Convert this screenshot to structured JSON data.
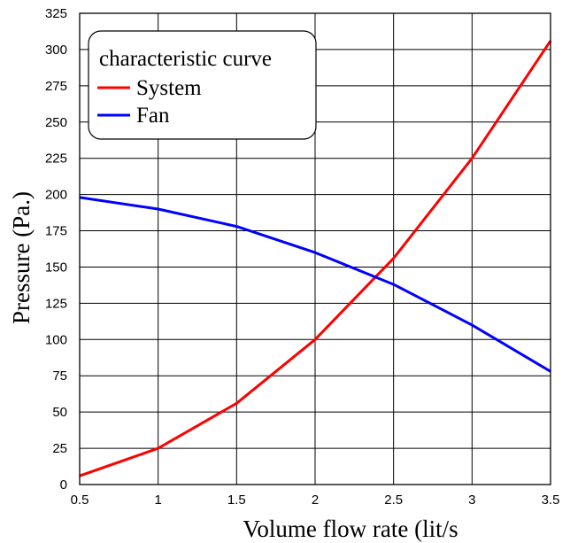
{
  "chart_data": {
    "type": "line",
    "title": "",
    "xlabel": "Volume flow rate (lit/s",
    "ylabel": "Pressure (Pa.)",
    "xlim": [
      0.5,
      3.5
    ],
    "ylim": [
      0,
      325
    ],
    "x_ticks": [
      0.5,
      1,
      1.5,
      2,
      2.5,
      3,
      3.5
    ],
    "x_tick_labels": [
      "0.5",
      "1",
      "1.5",
      "2",
      "2.5",
      "3",
      "3.5"
    ],
    "y_ticks": [
      0,
      25,
      50,
      75,
      100,
      125,
      150,
      175,
      200,
      225,
      250,
      275,
      300,
      325
    ],
    "y_tick_labels": [
      "0",
      "25",
      "50",
      "75",
      "100",
      "125",
      "150",
      "175",
      "200",
      "225",
      "250",
      "275",
      "300",
      "325"
    ],
    "grid": true,
    "legend": {
      "title": "characteristic curve",
      "placement": "top-left"
    },
    "series": [
      {
        "name": "System",
        "color": "#ff0000",
        "x": [
          0.5,
          1,
          1.5,
          2,
          2.5,
          3,
          3.5
        ],
        "values": [
          6,
          25,
          56,
          100,
          156,
          225,
          306
        ]
      },
      {
        "name": "Fan",
        "color": "#0000ff",
        "x": [
          0.5,
          1,
          1.5,
          2,
          2.5,
          3,
          3.5
        ],
        "values": [
          198,
          190,
          178,
          160,
          138,
          110,
          78
        ]
      }
    ]
  }
}
